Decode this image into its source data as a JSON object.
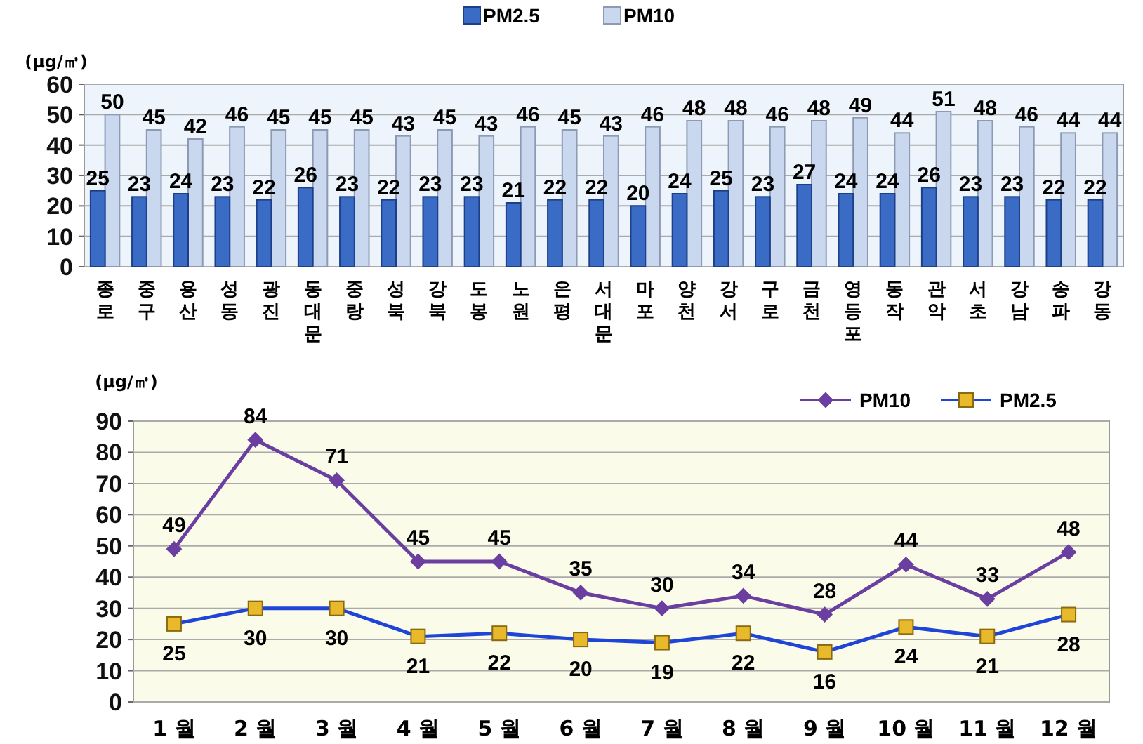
{
  "chart_data": [
    {
      "type": "bar",
      "ylabel": "(μg/㎥)",
      "categories": [
        "종로",
        "중구",
        "용산",
        "성동",
        "광진",
        "동대문",
        "중랑",
        "성북",
        "강북",
        "도봉",
        "노원",
        "은평",
        "서대문",
        "마포",
        "양천",
        "강서",
        "구로",
        "금천",
        "영등포",
        "동작",
        "관악",
        "서초",
        "강남",
        "송파",
        "강동"
      ],
      "series": [
        {
          "name": "PM2.5",
          "color": "#3a6cc6",
          "values": [
            25,
            23,
            24,
            23,
            22,
            26,
            23,
            22,
            23,
            23,
            21,
            22,
            22,
            20,
            24,
            25,
            23,
            27,
            24,
            24,
            26,
            23,
            23,
            22,
            22
          ]
        },
        {
          "name": "PM10",
          "color": "#c9d8ef",
          "values": [
            50,
            45,
            42,
            46,
            45,
            45,
            45,
            43,
            45,
            43,
            46,
            45,
            43,
            46,
            48,
            48,
            46,
            48,
            49,
            44,
            51,
            48,
            46,
            44,
            44
          ]
        }
      ],
      "ylim": [
        0,
        60
      ],
      "yticks": [
        0,
        10,
        20,
        30,
        40,
        50,
        60
      ],
      "grid": "y",
      "legend": "top",
      "data_labels": true
    },
    {
      "type": "line",
      "ylabel": "(μg/㎥)",
      "categories": [
        "1 월",
        "2 월",
        "3 월",
        "4 월",
        "5 월",
        "6 월",
        "7 월",
        "8 월",
        "9 월",
        "10 월",
        "11 월",
        "12 월"
      ],
      "series": [
        {
          "name": "PM10",
          "color": "#6b3fa0",
          "marker": "diamond",
          "values": [
            49,
            84,
            71,
            45,
            45,
            35,
            30,
            34,
            28,
            44,
            33,
            48
          ]
        },
        {
          "name": "PM2.5",
          "color": "#1f45d8",
          "marker": "square",
          "values": [
            25,
            30,
            30,
            21,
            22,
            20,
            19,
            22,
            16,
            24,
            21,
            28
          ]
        }
      ],
      "ylim": [
        0,
        90
      ],
      "yticks": [
        0,
        10,
        20,
        30,
        40,
        50,
        60,
        70,
        80,
        90
      ],
      "grid": "y",
      "legend": "top right",
      "data_labels": true
    }
  ]
}
